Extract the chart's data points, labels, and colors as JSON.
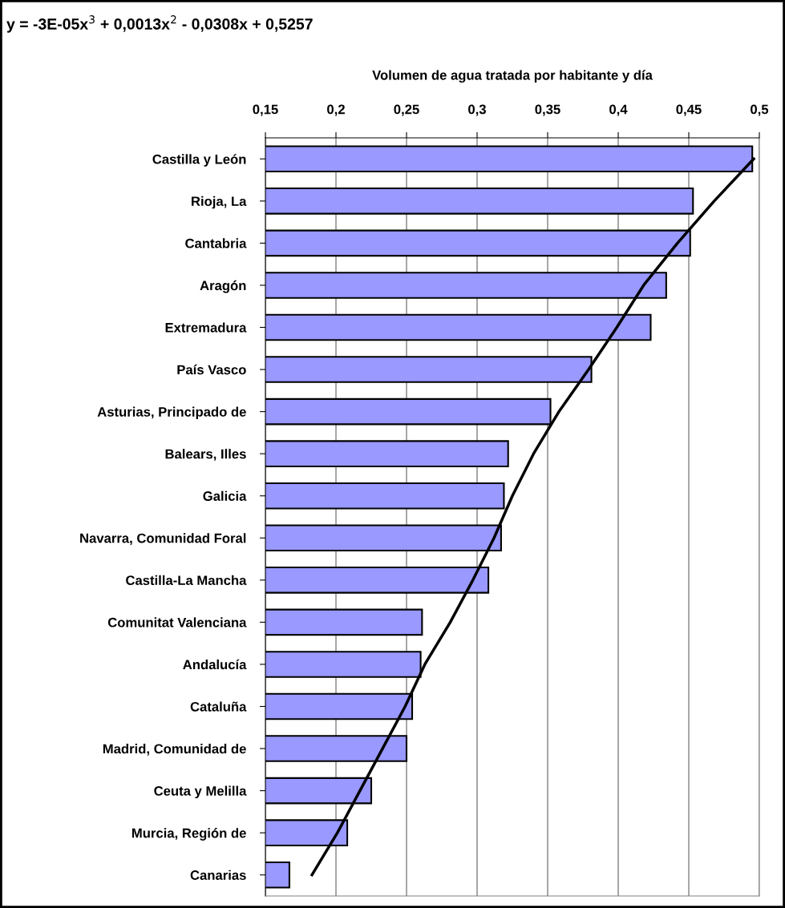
{
  "chart_data": {
    "type": "bar",
    "orientation": "horizontal",
    "annotations": [
      "y = -3E-05x$^{3}$ + 0,0013x$^{2}$ - 0,0308x + 0,5257"
    ],
    "xlabel": "Volumen de agua tratada por habitante y día",
    "categories": [
      "Castilla y León",
      "Rioja, La",
      "Cantabria",
      "Aragón",
      "Extremadura",
      "País Vasco",
      "Asturias, Principado de",
      "Balears, Illes",
      "Galicia",
      "Navarra, Comunidad Foral",
      "Castilla-La Mancha",
      "Comunitat Valenciana",
      "Andalucía",
      "Cataluña",
      "Madrid, Comunidad de",
      "Ceuta y Melilla",
      "Murcia, Región de",
      "Canarias"
    ],
    "series": [
      {
        "color": "#9999ff",
        "values": [
          0.495,
          0.453,
          0.451,
          0.434,
          0.423,
          0.381,
          0.352,
          0.322,
          0.319,
          0.317,
          0.308,
          0.261,
          0.26,
          0.254,
          0.25,
          0.225,
          0.208,
          0.167
        ]
      },
      {
        "type": "line",
        "color": "#000000",
        "values": [
          0.496,
          0.468,
          0.442,
          0.418,
          0.399,
          0.379,
          0.358,
          0.34,
          0.325,
          0.312,
          0.297,
          0.281,
          0.263,
          0.249,
          0.233,
          0.217,
          0.201,
          0.183
        ]
      }
    ],
    "xlim": [
      0.15,
      0.5
    ],
    "xticks": [
      {
        "value": 0.15,
        "label": "0,15"
      },
      {
        "value": 0.2,
        "label": "0,2"
      },
      {
        "value": 0.25,
        "label": "0,25"
      },
      {
        "value": 0.3,
        "label": "0,3"
      },
      {
        "value": 0.35,
        "label": "0,35"
      },
      {
        "value": 0.4,
        "label": "0,4"
      },
      {
        "value": 0.45,
        "label": "0,45"
      },
      {
        "value": 0.5,
        "label": "0,5"
      }
    ],
    "grid": "x",
    "legend": false
  }
}
